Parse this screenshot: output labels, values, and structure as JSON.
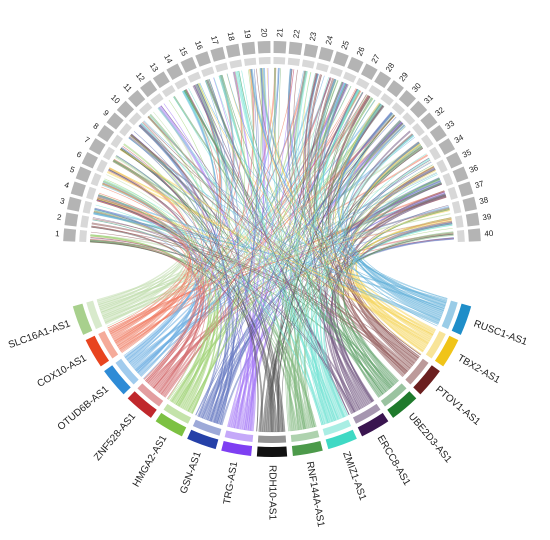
{
  "top_segments": [
    "1",
    "2",
    "3",
    "4",
    "5",
    "6",
    "7",
    "8",
    "9",
    "10",
    "11",
    "12",
    "13",
    "14",
    "15",
    "16",
    "17",
    "18",
    "19",
    "20",
    "21",
    "22",
    "23",
    "24",
    "25",
    "26",
    "27",
    "28",
    "29",
    "30",
    "31",
    "32",
    "33",
    "34",
    "35",
    "36",
    "37",
    "38",
    "39",
    "40"
  ],
  "genes": [
    {
      "label": "SLC16A1-AS1",
      "color": "#a8d08d"
    },
    {
      "label": "COX10-AS1",
      "color": "#e8441f"
    },
    {
      "label": "OTUD6B-AS1",
      "color": "#2e8bd6"
    },
    {
      "label": "ZNF528-AS1",
      "color": "#c0282c"
    },
    {
      "label": "HMGA2-AS1",
      "color": "#7cc142"
    },
    {
      "label": "GSN-AS1",
      "color": "#2540a8"
    },
    {
      "label": "TRG-AS1",
      "color": "#7e3ff2"
    },
    {
      "label": "RDH10-AS1",
      "color": "#111111"
    },
    {
      "label": "RNF144A-AS1",
      "color": "#4c9a4a"
    },
    {
      "label": "ZMIZ1-AS1",
      "color": "#3fd9c4"
    },
    {
      "label": "ERCC8-AS1",
      "color": "#3a1550"
    },
    {
      "label": "UBE2D3-AS1",
      "color": "#1f7a2c"
    },
    {
      "label": "PTOV1-AS1",
      "color": "#6b1f1f"
    },
    {
      "label": "TBX2-AS1",
      "color": "#f0c419"
    },
    {
      "label": "RUSC1-AS1",
      "color": "#1f8ec9"
    }
  ]
}
